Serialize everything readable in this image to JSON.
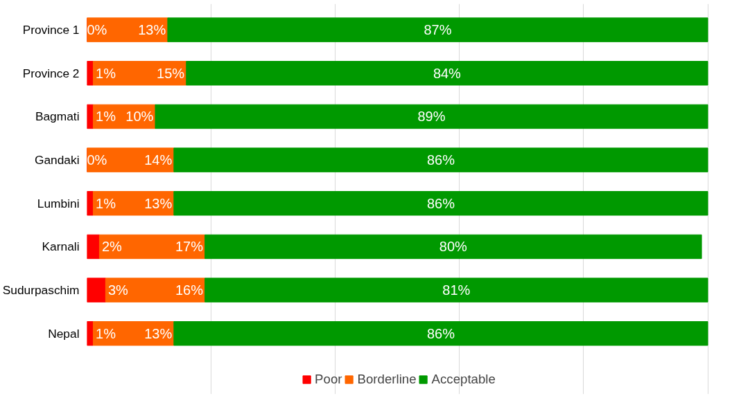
{
  "chart_data": {
    "type": "bar",
    "orientation": "horizontal",
    "stacked": true,
    "categories": [
      "Province 1",
      "Province 2",
      "Bagmati",
      "Gandaki",
      "Lumbini",
      "Karnali",
      "Sudurpaschim",
      "Nepal"
    ],
    "series": [
      {
        "name": "Poor",
        "color": "#ff0000",
        "values": [
          0,
          1,
          1,
          0,
          1,
          2,
          3,
          1
        ],
        "value_labels": [
          "0%",
          "1%",
          "1%",
          "0%",
          "1%",
          "2%",
          "3%",
          "1%"
        ]
      },
      {
        "name": "Borderline",
        "color": "#ff6600",
        "values": [
          13,
          15,
          10,
          14,
          13,
          17,
          16,
          13
        ],
        "value_labels": [
          "13%",
          "15%",
          "10%",
          "14%",
          "13%",
          "17%",
          "16%",
          "13%"
        ]
      },
      {
        "name": "Acceptable",
        "color": "#009900",
        "values": [
          87,
          84,
          89,
          86,
          86,
          80,
          81,
          86
        ],
        "value_labels": [
          "87%",
          "84%",
          "89%",
          "86%",
          "86%",
          "80%",
          "81%",
          "86%"
        ]
      }
    ],
    "grid": "x",
    "tick_labels": "y",
    "legend": "bottom"
  }
}
